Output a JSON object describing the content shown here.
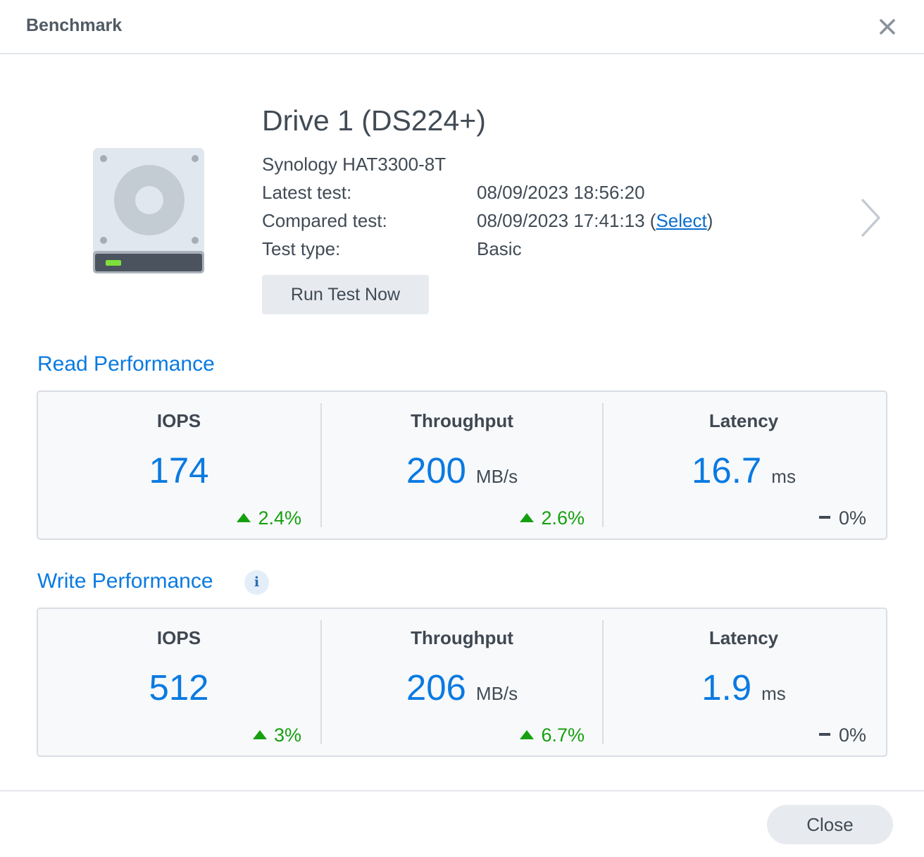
{
  "window": {
    "title": "Benchmark",
    "close_icon": "close-icon"
  },
  "drive": {
    "name": "Drive 1 (DS224+)",
    "model": "Synology HAT3300-8T",
    "latest_label": "Latest test:",
    "latest_value": "08/09/2023 18:56:20",
    "compared_label": "Compared test:",
    "compared_value": "08/09/2023 17:41:13",
    "compared_open": " (",
    "compared_link": "Select",
    "compared_close": ")",
    "type_label": "Test type:",
    "type_value": "Basic",
    "run_button": "Run Test Now",
    "status_led_color": "#7ee03a"
  },
  "read": {
    "title": "Read Performance",
    "iops": {
      "label": "IOPS",
      "value": "174",
      "unit": "",
      "delta": "2.4%",
      "trend": "up"
    },
    "throughput": {
      "label": "Throughput",
      "value": "200",
      "unit": "MB/s",
      "delta": "2.6%",
      "trend": "up"
    },
    "latency": {
      "label": "Latency",
      "value": "16.7",
      "unit": "ms",
      "delta": "0%",
      "trend": "flat"
    }
  },
  "write": {
    "title": "Write Performance",
    "info_icon": "i",
    "iops": {
      "label": "IOPS",
      "value": "512",
      "unit": "",
      "delta": "3%",
      "trend": "up"
    },
    "throughput": {
      "label": "Throughput",
      "value": "206",
      "unit": "MB/s",
      "delta": "6.7%",
      "trend": "up"
    },
    "latency": {
      "label": "Latency",
      "value": "1.9",
      "unit": "ms",
      "delta": "0%",
      "trend": "flat"
    }
  },
  "footer": {
    "close_button": "Close"
  },
  "colors": {
    "accent": "#0a7ae1",
    "positive": "#16a010",
    "link": "#0a6ed1"
  }
}
